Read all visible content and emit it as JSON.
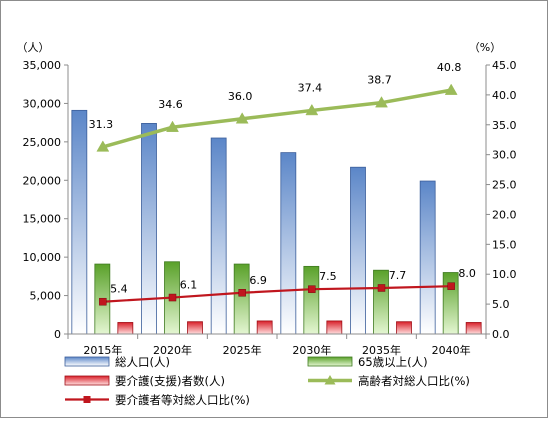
{
  "chart_data": {
    "type": "bar",
    "categories": [
      "2015年",
      "2020年",
      "2025年",
      "2030年",
      "2035年",
      "2040年"
    ],
    "left_axis": {
      "unit_label": "（人）",
      "min": 0,
      "max": 35000,
      "step": 5000,
      "tick_labels": [
        "0",
        "5,000",
        "10,000",
        "15,000",
        "20,000",
        "25,000",
        "30,000",
        "35,000"
      ]
    },
    "right_axis": {
      "unit_label": "（%）",
      "min": 0,
      "max": 45,
      "step": 5,
      "tick_labels": [
        "0.0",
        "5.0",
        "10.0",
        "15.0",
        "20.0",
        "25.0",
        "30.0",
        "35.0",
        "40.0",
        "45.0"
      ]
    },
    "grid": false,
    "legend_position": "bottom",
    "colors": {
      "total_bar_top": "#5b86c8",
      "total_bar_bottom": "#ffffff",
      "total_stroke": "#3b5e9a",
      "elderly_bar_top": "#5aa12a",
      "elderly_bar_bottom": "#e4f6d2",
      "elderly_stroke": "#3f7a20",
      "care_bar_top": "#d9202a",
      "care_bar_bottom": "#ffdede",
      "care_stroke": "#a01018",
      "elderly_ratio_line": "#9bbb59",
      "care_ratio_line": "#c0161e"
    },
    "bar_series": [
      {
        "name": "総人口(人)",
        "axis": "left",
        "values": [
          29100,
          27400,
          25500,
          23600,
          21700,
          19900
        ]
      },
      {
        "name": "65歳以上(人)",
        "axis": "left",
        "values": [
          9100,
          9400,
          9100,
          8800,
          8300,
          8000
        ]
      },
      {
        "name": "要介護(支援)者数(人)",
        "axis": "left",
        "values": [
          1500,
          1600,
          1700,
          1700,
          1600,
          1500
        ]
      }
    ],
    "line_series": [
      {
        "name": "高齢者対総人口比(%)",
        "axis": "right",
        "marker": "triangle",
        "values": [
          31.3,
          34.6,
          36.0,
          37.4,
          38.7,
          40.8
        ],
        "labels": [
          "31.3",
          "34.6",
          "36.0",
          "37.4",
          "38.7",
          "40.8"
        ]
      },
      {
        "name": "要介護者等対総人口比(%)",
        "axis": "right",
        "marker": "square",
        "values": [
          5.4,
          6.1,
          6.9,
          7.5,
          7.7,
          8.0
        ],
        "labels": [
          "5.4",
          "6.1",
          "6.9",
          "7.5",
          "7.7",
          "8.0"
        ]
      }
    ],
    "legend": [
      {
        "label": "総人口(人)",
        "kind": "bar",
        "series": 0
      },
      {
        "label": "65歳以上(人)",
        "kind": "bar",
        "series": 1
      },
      {
        "label": "要介護(支援)者数(人)",
        "kind": "bar",
        "series": 2
      },
      {
        "label": "高齢者対総人口比(%)",
        "kind": "line",
        "series": 0
      },
      {
        "label": "要介護者等対総人口比(%)",
        "kind": "line",
        "series": 1
      }
    ]
  }
}
